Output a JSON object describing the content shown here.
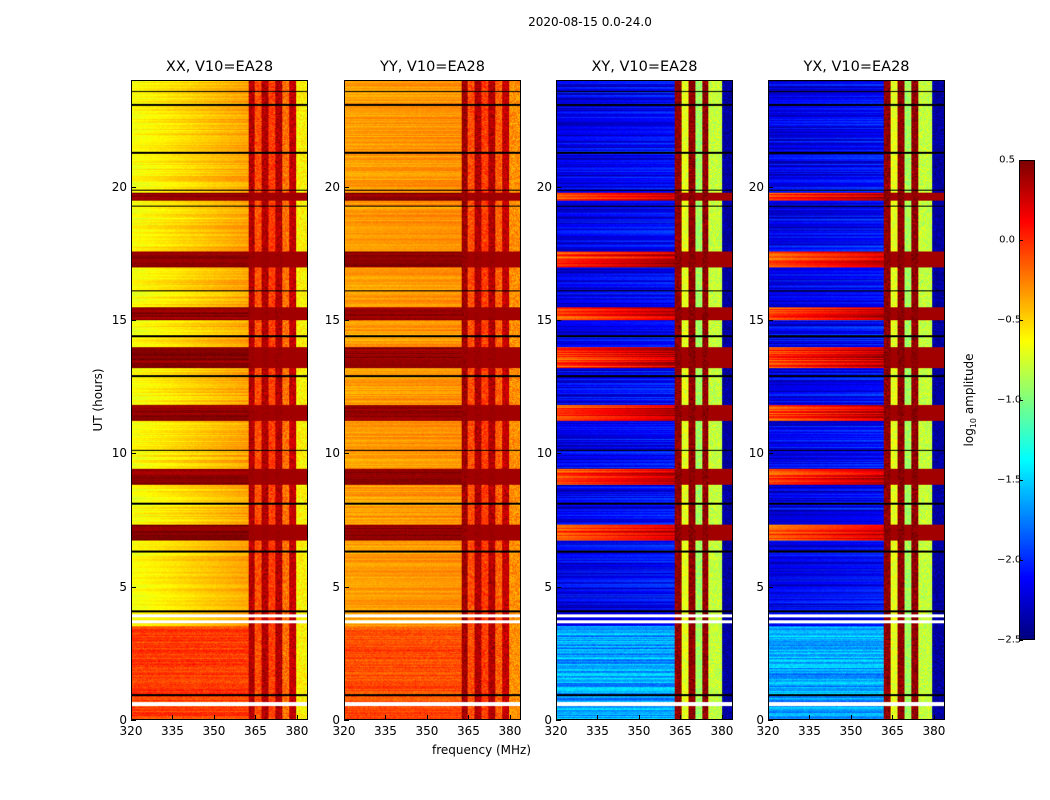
{
  "chart_data": {
    "type": "heatmap",
    "title": "2020-08-15 0.0-24.0",
    "xlabel": "frequency (MHz)",
    "ylabel": "UT (hours)",
    "xlim": [
      320,
      384
    ],
    "ylim": [
      0,
      24
    ],
    "xticks": [
      "320",
      "335",
      "350",
      "365",
      "380"
    ],
    "xtick_values": [
      320,
      335,
      350,
      365,
      380
    ],
    "yticks": [
      "0",
      "5",
      "10",
      "15",
      "20"
    ],
    "ytick_values": [
      0,
      5,
      10,
      15,
      20
    ],
    "colorbar": {
      "label_prefix": "log",
      "label_sub": "10",
      "label_suffix": " amplitude",
      "range": [
        -2.5,
        0.5
      ],
      "ticks": [
        "0.5",
        "0.0",
        "−0.5",
        "−1.0",
        "−1.5",
        "−2.0",
        "−2.5"
      ],
      "tick_values": [
        0.5,
        0.0,
        -0.5,
        -1.0,
        -1.5,
        -2.0,
        -2.5
      ],
      "colormap": "jet"
    },
    "panels": [
      {
        "title": "XX, V10=EA28",
        "pol": "parallel",
        "low_band_level": [
          -0.65,
          -0.35
        ],
        "early_level": -0.05,
        "high_band_start": 362.5,
        "high_band_levels": [
          0.35,
          -0.1,
          0.35,
          -0.05,
          0.35,
          -0.2,
          0.3,
          -0.6
        ],
        "saturated_level": 0.45
      },
      {
        "title": "YY, V10=EA28",
        "pol": "parallel",
        "low_band_level": [
          -0.35,
          -0.3
        ],
        "early_level": -0.1,
        "high_band_start": 362.5,
        "high_band_levels": [
          0.4,
          -0.1,
          0.35,
          -0.05,
          0.35,
          -0.15,
          0.3,
          -0.3
        ],
        "saturated_level": 0.45
      },
      {
        "title": "XY, V10=EA28",
        "pol": "cross",
        "low_band_level": [
          -2.2,
          -2.1
        ],
        "early_level": -1.65,
        "high_band_start": 363,
        "high_band_levels": [
          0.45,
          -0.7,
          0.45,
          -0.9,
          0.45,
          -0.8,
          -0.8,
          -2.4
        ],
        "saturated_level": -0.1
      },
      {
        "title": "YX, V10=EA28",
        "pol": "cross",
        "low_band_level": [
          -2.2,
          -2.1
        ],
        "early_level": -1.65,
        "high_band_start": 362,
        "high_band_levels": [
          0.45,
          -0.7,
          0.45,
          -0.9,
          0.45,
          -0.8,
          -0.8,
          -2.4
        ],
        "saturated_level": -0.1
      }
    ],
    "saturated_intervals_hours": [
      [
        6.7,
        7.3
      ],
      [
        8.8,
        9.4
      ],
      [
        11.2,
        11.8
      ],
      [
        13.2,
        14.0
      ],
      [
        15.0,
        15.5
      ],
      [
        17.0,
        17.6
      ],
      [
        19.5,
        19.8
      ]
    ],
    "blank_intervals_hours": [
      [
        0.48,
        0.62
      ],
      [
        3.6,
        3.72
      ],
      [
        3.82,
        3.92
      ]
    ],
    "black_lines_hours": [
      0.9,
      4.05,
      6.3,
      8.1,
      10.1,
      12.9,
      14.4,
      16.1,
      19.3,
      19.9,
      21.3,
      23.1,
      23.6
    ]
  }
}
